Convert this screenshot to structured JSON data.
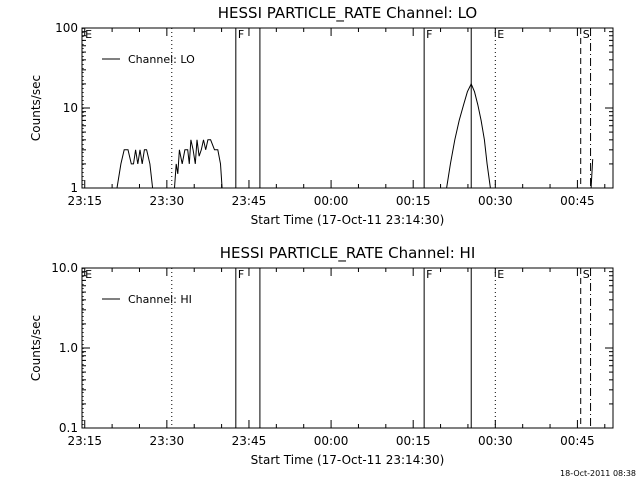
{
  "footer_timestamp": "18-Oct-2011 08:38",
  "chart_data": [
    {
      "type": "line",
      "title": "HESSI PARTICLE_RATE Channel: LO",
      "xlabel": "Start Time (17-Oct-11 23:14:30)",
      "ylabel": "Counts/sec",
      "yscale": "log",
      "ylim": [
        1,
        100
      ],
      "xlim_min": [
        0,
        97
      ],
      "xticks": [
        {
          "min": 0.5,
          "label": "23:15"
        },
        {
          "min": 15.5,
          "label": "23:30"
        },
        {
          "min": 30.5,
          "label": "23:45"
        },
        {
          "min": 45.5,
          "label": "00:00"
        },
        {
          "min": 60.5,
          "label": "00:15"
        },
        {
          "min": 75.5,
          "label": "00:30"
        },
        {
          "min": 90.5,
          "label": "00:45"
        }
      ],
      "yticks": [
        {
          "value": 1,
          "label": "1"
        },
        {
          "value": 10,
          "label": "10"
        },
        {
          "value": 100,
          "label": "100"
        }
      ],
      "legend": {
        "label": "Channel: LO",
        "position": "top-left"
      },
      "event_markers": [
        {
          "label": "E",
          "min": 0.2,
          "style": "dotted"
        },
        {
          "label": "",
          "min": 16.4,
          "style": "dotted"
        },
        {
          "label": "F",
          "min": 28.1,
          "style": "solid"
        },
        {
          "label": "",
          "min": 32.5,
          "style": "solid"
        },
        {
          "label": "F",
          "min": 62.5,
          "style": "solid"
        },
        {
          "label": "",
          "min": 71.1,
          "style": "solid"
        },
        {
          "label": "E",
          "min": 75.5,
          "style": "dotted"
        },
        {
          "label": "S",
          "min": 91.1,
          "style": "dashed"
        },
        {
          "label": "",
          "min": 92.9,
          "style": "dashdot"
        }
      ],
      "series": [
        {
          "name": "Channel: LO",
          "segments": [
            [
              [
                6.4,
                1
              ],
              [
                7.1,
                2
              ],
              [
                7.7,
                3
              ],
              [
                8.4,
                3
              ],
              [
                9.0,
                2
              ],
              [
                9.4,
                2
              ],
              [
                9.8,
                3
              ],
              [
                10.2,
                2
              ],
              [
                10.6,
                3
              ],
              [
                11.0,
                2
              ],
              [
                11.4,
                3
              ],
              [
                11.8,
                3
              ],
              [
                12.4,
                2
              ],
              [
                12.9,
                1
              ]
            ],
            [
              [
                16.9,
                1
              ],
              [
                17.2,
                2
              ],
              [
                17.5,
                1.5
              ],
              [
                17.8,
                3
              ],
              [
                18.3,
                2
              ],
              [
                18.8,
                3
              ],
              [
                19.3,
                3
              ],
              [
                19.6,
                2
              ],
              [
                19.9,
                4
              ],
              [
                20.3,
                3
              ],
              [
                20.7,
                2
              ],
              [
                21.0,
                4
              ],
              [
                21.4,
                2.5
              ],
              [
                21.8,
                3
              ],
              [
                22.2,
                4
              ],
              [
                22.6,
                3
              ],
              [
                23.0,
                4
              ],
              [
                23.5,
                4
              ],
              [
                24.2,
                3
              ],
              [
                24.8,
                3
              ],
              [
                25.3,
                2
              ],
              [
                25.6,
                1
              ]
            ],
            [
              [
                66.6,
                1
              ],
              [
                67.3,
                2
              ],
              [
                68.1,
                4
              ],
              [
                68.9,
                7
              ],
              [
                69.7,
                11
              ],
              [
                70.4,
                16
              ],
              [
                71.1,
                20
              ],
              [
                71.7,
                16
              ],
              [
                72.3,
                11
              ],
              [
                72.9,
                7
              ],
              [
                73.5,
                4
              ],
              [
                74.0,
                2
              ],
              [
                74.6,
                1
              ]
            ],
            [
              [
                93.0,
                1
              ],
              [
                93.3,
                2.3
              ]
            ]
          ]
        }
      ]
    },
    {
      "type": "line",
      "title": "HESSI PARTICLE_RATE Channel: HI",
      "xlabel": "Start Time (17-Oct-11 23:14:30)",
      "ylabel": "Counts/sec",
      "yscale": "log",
      "ylim": [
        0.1,
        10
      ],
      "xlim_min": [
        0,
        97
      ],
      "xticks": [
        {
          "min": 0.5,
          "label": "23:15"
        },
        {
          "min": 15.5,
          "label": "23:30"
        },
        {
          "min": 30.5,
          "label": "23:45"
        },
        {
          "min": 45.5,
          "label": "00:00"
        },
        {
          "min": 60.5,
          "label": "00:15"
        },
        {
          "min": 75.5,
          "label": "00:30"
        },
        {
          "min": 90.5,
          "label": "00:45"
        }
      ],
      "yticks": [
        {
          "value": 0.1,
          "label": "0.1"
        },
        {
          "value": 1,
          "label": "1.0"
        },
        {
          "value": 10,
          "label": "10.0"
        }
      ],
      "legend": {
        "label": "Channel: HI",
        "position": "top-left"
      },
      "event_markers": [
        {
          "label": "E",
          "min": 0.2,
          "style": "dotted"
        },
        {
          "label": "",
          "min": 16.4,
          "style": "dotted"
        },
        {
          "label": "F",
          "min": 28.1,
          "style": "solid"
        },
        {
          "label": "",
          "min": 32.5,
          "style": "solid"
        },
        {
          "label": "F",
          "min": 62.5,
          "style": "solid"
        },
        {
          "label": "",
          "min": 71.1,
          "style": "solid"
        },
        {
          "label": "E",
          "min": 75.5,
          "style": "dotted"
        },
        {
          "label": "S",
          "min": 91.1,
          "style": "dashed"
        },
        {
          "label": "",
          "min": 92.9,
          "style": "dashdot"
        }
      ],
      "series": [
        {
          "name": "Channel: HI",
          "segments": []
        }
      ]
    }
  ]
}
